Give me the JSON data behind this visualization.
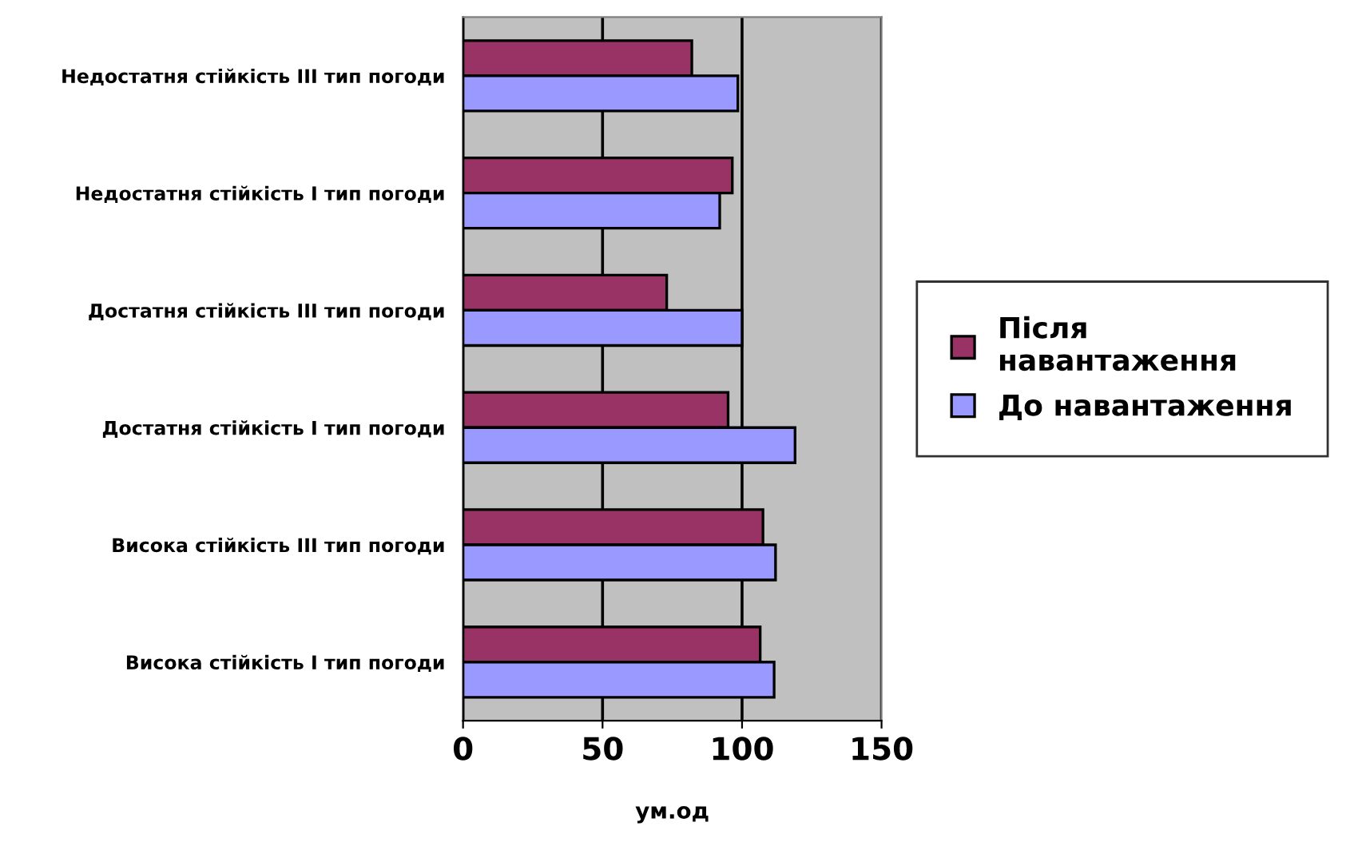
{
  "chart_data": {
    "type": "bar",
    "orientation": "horizontal",
    "xlabel": "ум.од",
    "categories": [
      "Недостатня стійкість ІІІ тип погоди",
      "Недостатня стійкість І тип погоди",
      "Достатня стійкість ІІІ тип погоди",
      "Достатня стійкість І тип погоди",
      "Висока стійкість ІІІ тип погоди",
      "Висока стійкість І тип погоди"
    ],
    "series": [
      {
        "name": "Після навантаження",
        "color": "#993366",
        "values": [
          82,
          96.5,
          73,
          95,
          107.5,
          106.5
        ]
      },
      {
        "name": "До навантаження",
        "color": "#9999ff",
        "values": [
          98.5,
          92,
          100,
          119,
          112,
          111.5
        ]
      }
    ],
    "xlim": [
      0,
      150
    ],
    "xticks": [
      0,
      50,
      100,
      150
    ],
    "grid": "x",
    "legend": "right"
  }
}
